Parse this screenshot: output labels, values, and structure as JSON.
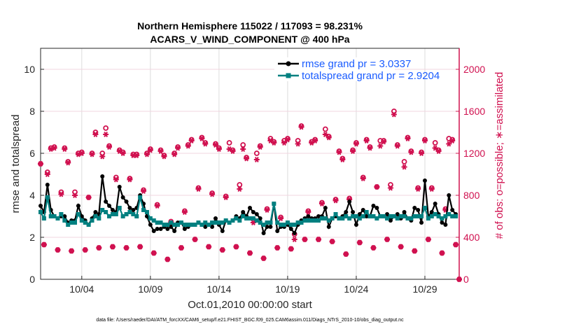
{
  "chart_data": {
    "type": "line",
    "title": "Northern Hemisphere 115022 / 117093 = 98.231%",
    "subtitle": "ACARS_V_WIND_COMPONENT @ 400 hPa",
    "xlabel": "Oct.01,2010 00:00:00 start",
    "ylabel": "rmse and totalspread",
    "ylabel_right": "# of obs: o=possible; ∗=assimilated",
    "footer": "data file: /Users/raeder/DAI/ATM_forcXX/CAM6_setup/f.e21.FHIST_BGC.f09_025.CAM6assim.011/Diags_NTrS_2010-10/obs_diag_output.nc",
    "x_start": "2010-10-01 00:00",
    "x_step_hours": 6,
    "x_ticks": [
      "10/04",
      "10/09",
      "10/14",
      "10/19",
      "10/24",
      "10/29"
    ],
    "x_tick_days": [
      3,
      8,
      13,
      18,
      23,
      28
    ],
    "xlim_days": [
      0,
      30.5
    ],
    "ylim": [
      0,
      11
    ],
    "y_ticks": [
      "0",
      "2",
      "4",
      "6",
      "8",
      "10"
    ],
    "ylim_right": [
      0,
      2200
    ],
    "y_ticks_right": [
      "0",
      "400",
      "800",
      "1200",
      "1600",
      "2000"
    ],
    "grid": true,
    "legend_position": "top-right",
    "colors": {
      "rmse": "#000000",
      "totalspread": "#008080",
      "obs": "#d0104f",
      "legend_text": "#1a5cff"
    },
    "series": [
      {
        "name": "rmse grand pr = 3.0337",
        "values": [
          3.5,
          3.2,
          4.5,
          3.3,
          3.0,
          2.9,
          3.0,
          3.0,
          2.7,
          2.8,
          2.8,
          3.5,
          3.0,
          2.8,
          2.6,
          2.9,
          3.2,
          3.1,
          4.9,
          3.7,
          3.5,
          3.3,
          3.2,
          4.4,
          3.9,
          3.7,
          3.4,
          3.3,
          3.4,
          4.0,
          3.6,
          3.0,
          2.6,
          2.3,
          2.4,
          2.4,
          2.5,
          2.4,
          2.5,
          2.3,
          2.7,
          2.7,
          2.4,
          2.5,
          2.6,
          2.6,
          2.7,
          2.6,
          2.5,
          2.6,
          2.5,
          2.9,
          2.6,
          2.3,
          2.8,
          2.7,
          2.8,
          3.0,
          2.9,
          3.2,
          3.0,
          3.4,
          3.2,
          3.1,
          2.9,
          2.2,
          2.5,
          2.5,
          3.6,
          2.3,
          2.5,
          2.5,
          2.6,
          2.4,
          2.2,
          2.6,
          2.8,
          2.9,
          3.0,
          2.9,
          2.9,
          3.0,
          3.0,
          3.4,
          2.5,
          2.9,
          3.0,
          2.9,
          3.0,
          3.2,
          3.7,
          3.2,
          2.6,
          3.1,
          3.3,
          3.0,
          3.0,
          3.5,
          3.4,
          3.0,
          3.0,
          3.1,
          2.8,
          3.0,
          3.1,
          2.9,
          3.2,
          2.9,
          2.8,
          3.4,
          3.3,
          2.7,
          4.7,
          3.0,
          3.2,
          3.6,
          3.1,
          2.7,
          2.6,
          4.0,
          3.3,
          3.1
        ]
      },
      {
        "name": "totalspread grand pr = 2.9204",
        "values": [
          3.2,
          2.9,
          3.9,
          3.0,
          3.0,
          2.9,
          3.1,
          2.8,
          2.6,
          2.7,
          2.7,
          3.1,
          2.8,
          2.7,
          2.6,
          2.8,
          3.0,
          2.9,
          3.3,
          3.2,
          3.0,
          3.1,
          3.1,
          3.4,
          3.0,
          3.1,
          3.2,
          3.1,
          3.0,
          3.9,
          3.3,
          3.2,
          2.9,
          2.8,
          2.7,
          2.7,
          2.6,
          2.6,
          2.7,
          2.6,
          2.6,
          2.7,
          2.6,
          2.6,
          2.6,
          2.6,
          2.7,
          2.6,
          2.7,
          2.6,
          2.7,
          2.7,
          2.7,
          2.7,
          2.8,
          2.7,
          2.8,
          2.9,
          2.8,
          3.0,
          2.9,
          2.9,
          2.9,
          2.8,
          2.7,
          2.6,
          2.7,
          2.7,
          3.6,
          2.7,
          2.6,
          2.6,
          2.7,
          2.6,
          2.6,
          2.7,
          2.7,
          2.8,
          2.8,
          2.8,
          2.8,
          2.8,
          2.9,
          2.9,
          2.8,
          2.9,
          3.1,
          2.9,
          2.9,
          3.0,
          2.9,
          3.0,
          3.0,
          2.9,
          3.0,
          3.2,
          3.0,
          3.0,
          2.9,
          3.0,
          3.0,
          2.9,
          3.0,
          3.0,
          2.9,
          3.0,
          3.0,
          2.9,
          2.9,
          3.0,
          3.0,
          3.0,
          3.4,
          2.9,
          3.0,
          3.1,
          3.0,
          2.9,
          3.0,
          3.1,
          3.0,
          3.0
        ]
      },
      {
        "name": "obs possible",
        "axis": "right",
        "values": [
          1100,
          330,
          1020,
          1250,
          1260,
          280,
          830,
          1250,
          1120,
          270,
          830,
          1200,
          1210,
          280,
          780,
          1200,
          1400,
          300,
          1200,
          1440,
          1270,
          310,
          970,
          1230,
          1210,
          300,
          960,
          1190,
          1190,
          310,
          850,
          1200,
          1240,
          250,
          710,
          1230,
          1180,
          190,
          550,
          1200,
          1260,
          300,
          650,
          1280,
          1330,
          380,
          870,
          1350,
          1300,
          310,
          820,
          1290,
          1250,
          280,
          790,
          1300,
          1230,
          310,
          900,
          1280,
          1160,
          250,
          570,
          1200,
          1270,
          200,
          670,
          1340,
          1310,
          300,
          590,
          1320,
          1340,
          290,
          430,
          1320,
          1460,
          380,
          650,
          1310,
          1330,
          380,
          730,
          1430,
          1360,
          360,
          760,
          1220,
          1150,
          240,
          770,
          1230,
          1300,
          350,
          970,
          1330,
          1260,
          300,
          880,
          1320,
          1320,
          380,
          900,
          1600,
          1280,
          310,
          1120,
          1350,
          1220,
          270,
          870,
          1210,
          1330,
          380,
          870,
          1300,
          1230,
          250,
          670,
          1340,
          1330,
          330,
          0
        ]
      },
      {
        "name": "obs assimilated",
        "axis": "right",
        "values": [
          1100,
          330,
          1000,
          1240,
          1250,
          280,
          810,
          1240,
          1110,
          270,
          800,
          1190,
          1200,
          280,
          780,
          1190,
          1380,
          300,
          1170,
          1380,
          1260,
          310,
          950,
          1220,
          1200,
          300,
          950,
          1180,
          1180,
          310,
          840,
          1190,
          1230,
          250,
          700,
          1220,
          1170,
          190,
          540,
          1190,
          1250,
          300,
          640,
          1270,
          1320,
          380,
          860,
          1340,
          1290,
          310,
          810,
          1280,
          1240,
          280,
          780,
          1240,
          1220,
          310,
          860,
          1240,
          1150,
          250,
          540,
          1140,
          1260,
          200,
          660,
          1320,
          1300,
          300,
          580,
          1300,
          1330,
          290,
          380,
          1290,
          1450,
          380,
          640,
          1300,
          1320,
          380,
          720,
          1380,
          1350,
          360,
          750,
          1210,
          1140,
          240,
          760,
          1220,
          1290,
          350,
          960,
          1320,
          1250,
          300,
          880,
          1270,
          1310,
          380,
          870,
          1570,
          1270,
          310,
          1070,
          1340,
          1210,
          270,
          860,
          1200,
          1320,
          380,
          860,
          1250,
          1220,
          250,
          660,
          1290,
          1320,
          330,
          0
        ]
      }
    ]
  }
}
